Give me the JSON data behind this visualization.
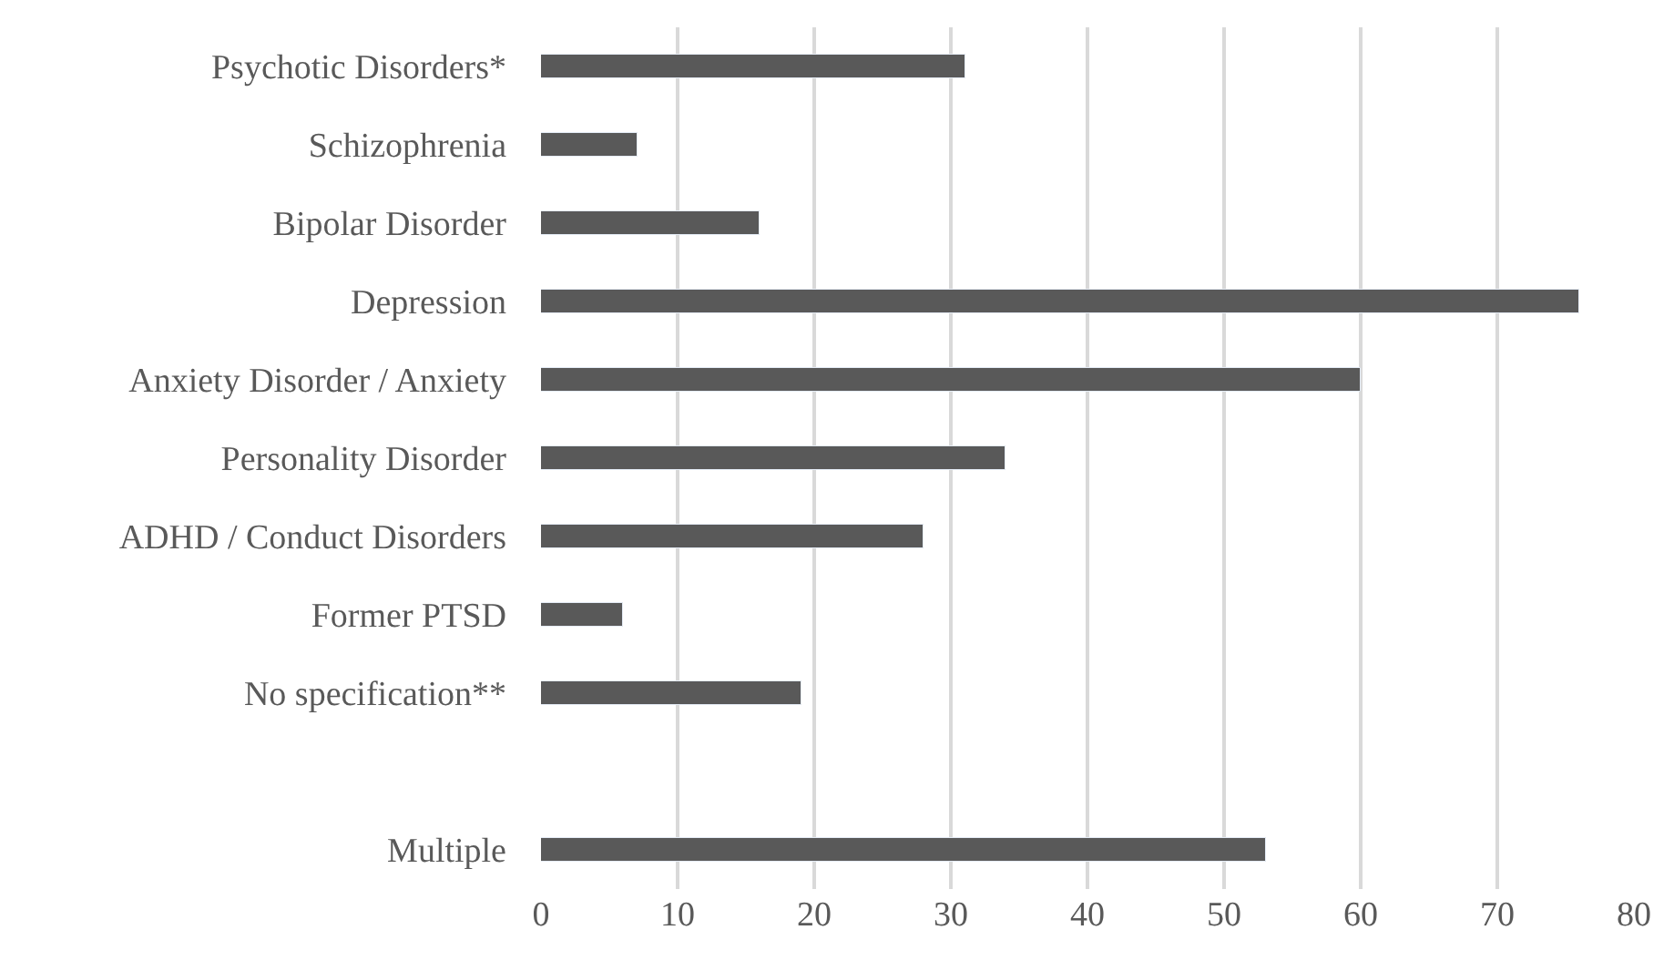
{
  "chart_data": {
    "type": "bar",
    "orientation": "horizontal",
    "categories": [
      "Psychotic Disorders*",
      "Schizophrenia",
      "Bipolar Disorder",
      "Depression",
      "Anxiety Disorder / Anxiety",
      "Personality Disorder",
      "ADHD / Conduct Disorders",
      "Former PTSD",
      "No specification**",
      null,
      "Multiple"
    ],
    "values": [
      31,
      7,
      16,
      76,
      60,
      34,
      28,
      6,
      19,
      null,
      53
    ],
    "color": "#595959",
    "xlim": [
      0,
      80
    ],
    "xticks": [
      0,
      10,
      20,
      30,
      40,
      50,
      60,
      70,
      80
    ],
    "grid": "x"
  }
}
